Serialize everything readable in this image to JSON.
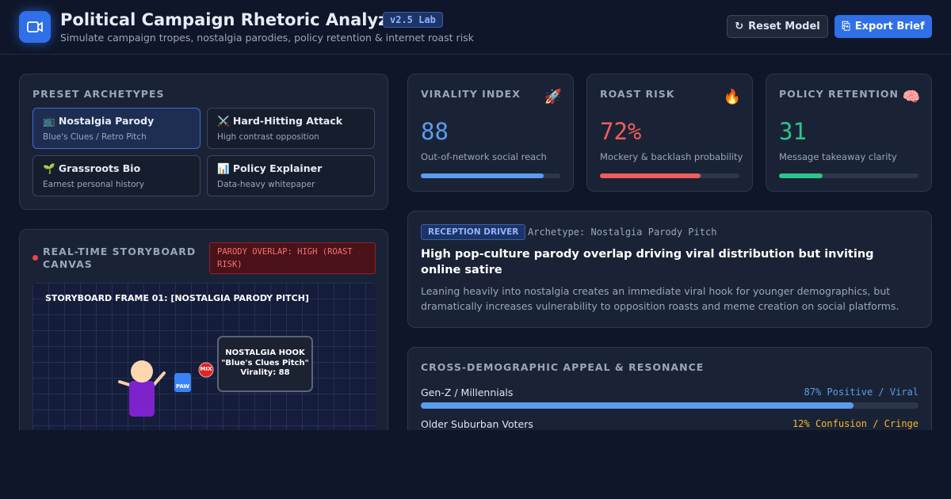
{
  "header": {
    "title": "Political Campaign Rhetoric Analyzer",
    "badge": "v2.5 Lab",
    "subtitle": "Simulate campaign tropes, nostalgia parodies, policy retention & internet roast risk",
    "buttons": [
      "Reset Model",
      "Export Brief"
    ]
  },
  "presets": {
    "title": "PRESET ARCHETYPES",
    "items": [
      {
        "label": "📺 Nostalgia Parody",
        "sub": "Blue's Clues / Retro Pitch"
      },
      {
        "label": "⚔️ Hard-Hitting Attack",
        "sub": "High contrast opposition"
      },
      {
        "label": "🌱 Grassroots Bio",
        "sub": "Earnest personal history"
      },
      {
        "label": "📊 Policy Explainer",
        "sub": "Data-heavy whitepaper"
      }
    ]
  },
  "storyboard": {
    "title": "REAL-TIME STORYBOARD CANVAS",
    "alert": "PARODY OVERLAP: HIGH (ROAST RISK)",
    "frame": "STORYBOARD FRAME 01: [NOSTALGIA PARODY PITCH]",
    "hook_title": "NOSTALGIA HOOK",
    "hook_name": "\"Blue's Clues Pitch\"",
    "hook_virality": "Virality: 88",
    "paw": "PAW",
    "mix": "MIX"
  },
  "metrics": [
    {
      "title": "VIRALITY INDEX",
      "icon": "🚀",
      "value": {
        "value": 88,
        "label": "88"
      },
      "caption": "Out-of-network social reach",
      "color": "#5b9cf0"
    },
    {
      "title": "ROAST RISK",
      "icon": "🔥",
      "value": {
        "value": 72,
        "label": "72%"
      },
      "caption": "Mockery & backlash probability",
      "color": "#ef5d5d"
    },
    {
      "title": "POLICY RETENTION",
      "icon": "🧠",
      "value": {
        "value": 31,
        "label": "31"
      },
      "caption": "Message takeaway clarity",
      "color": "#2fc48a"
    }
  ],
  "driver": {
    "badge": "RECEPTION DRIVER",
    "archetype": "Archetype: Nostalgia Parody Pitch",
    "headline": "High pop-culture parody overlap driving viral distribution but inviting online satire",
    "body": "Leaning heavily into nostalgia creates an immediate viral hook for younger demographics, but dramatically increases vulnerability to opposition roasts and meme creation on social platforms."
  },
  "demographics": {
    "title": "CROSS-DEMOGRAPHIC APPEAL & RESONANCE",
    "rows": [
      {
        "name": "Gen-Z / Millennials",
        "value": {
          "value": 87,
          "label": "87% Positive / Viral"
        },
        "color": "#5b9cf0"
      },
      {
        "name": "Older Suburban Voters",
        "value": {
          "value": 12,
          "label": "12% Confusion / Cringe"
        },
        "color": "#f5b82e"
      }
    ]
  }
}
